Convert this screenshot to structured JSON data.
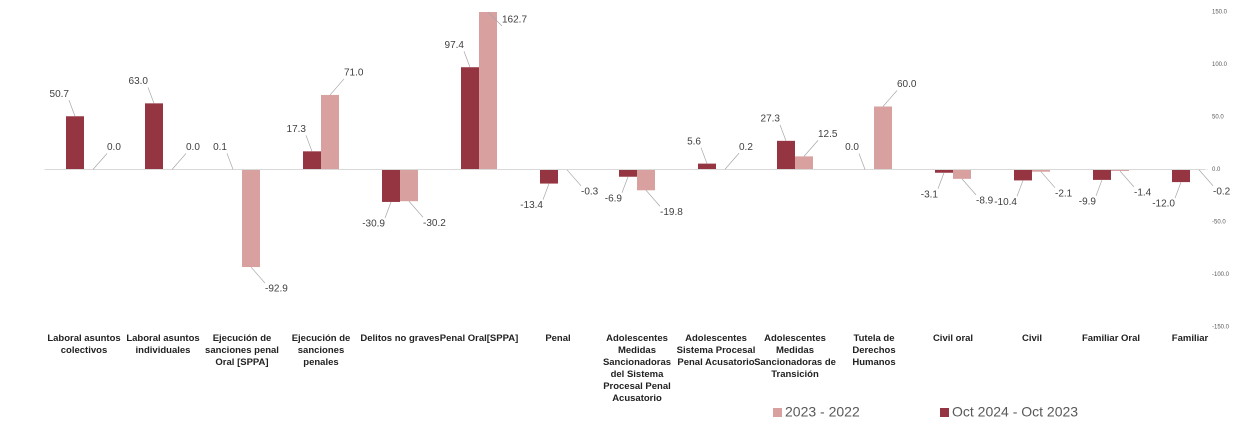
{
  "chart_data": {
    "type": "bar",
    "categories": [
      "Laboral asuntos colectivos",
      "Laboral asuntos individuales",
      "Ejecución de sanciones penal Oral [SPPA]",
      "Ejecución de sanciones penales",
      "Delitos no graves",
      "Penal Oral[SPPA]",
      "Penal",
      "Adolescentes Medidas Sancionadoras del Sistema Procesal Penal Acusatorio",
      "Adolescentes Sistema Procesal Penal Acusatorio",
      "Adolescentes Medidas Sancionadoras de Transición",
      "Tutela de Derechos Humanos",
      "Civil oral",
      "Civil",
      "Familiar Oral",
      "Familiar"
    ],
    "series": [
      {
        "name": "Oct 2024 - Oct 2023",
        "color": "#953542",
        "values": [
          50.7,
          63.0,
          0.1,
          17.3,
          -30.9,
          97.4,
          -13.4,
          -6.9,
          5.6,
          27.3,
          0.0,
          -3.1,
          -10.4,
          -9.9,
          -12.0
        ],
        "value_labels": [
          "50.7",
          "63.0",
          "0.1",
          "17.3",
          "-30.9",
          "97.4",
          "-13.4",
          "-6.9",
          "5.6",
          "27.3",
          "0.0",
          "-3.1",
          "-10.4",
          "-9.9",
          "-12.0"
        ]
      },
      {
        "name": "2023 - 2022",
        "color": "#d9a0a0",
        "values": [
          0.0,
          0.0,
          -92.9,
          71.0,
          -30.2,
          162.7,
          -0.3,
          -19.8,
          0.2,
          12.5,
          60.0,
          -8.9,
          -2.1,
          -1.4,
          -0.2
        ],
        "value_labels": [
          "0.0",
          "0.0",
          "-92.9",
          "71.0",
          "-30.2",
          "162.7",
          "-0.3",
          "-19.8",
          "0.2",
          "12.5",
          "60.0",
          "-8.9",
          "-2.1",
          "-1.4",
          "-0.2"
        ]
      }
    ],
    "ylim": [
      -150,
      150
    ],
    "yticks": [
      {
        "value": -150,
        "label": "-150.0"
      },
      {
        "value": -100,
        "label": "-100.0"
      },
      {
        "value": -50,
        "label": "-50.0"
      },
      {
        "value": 0,
        "label": "0.0"
      },
      {
        "value": 50,
        "label": "50.0"
      },
      {
        "value": 100,
        "label": "100.0"
      },
      {
        "value": 150,
        "label": "150.0"
      }
    ],
    "legend": "bottom-right"
  }
}
